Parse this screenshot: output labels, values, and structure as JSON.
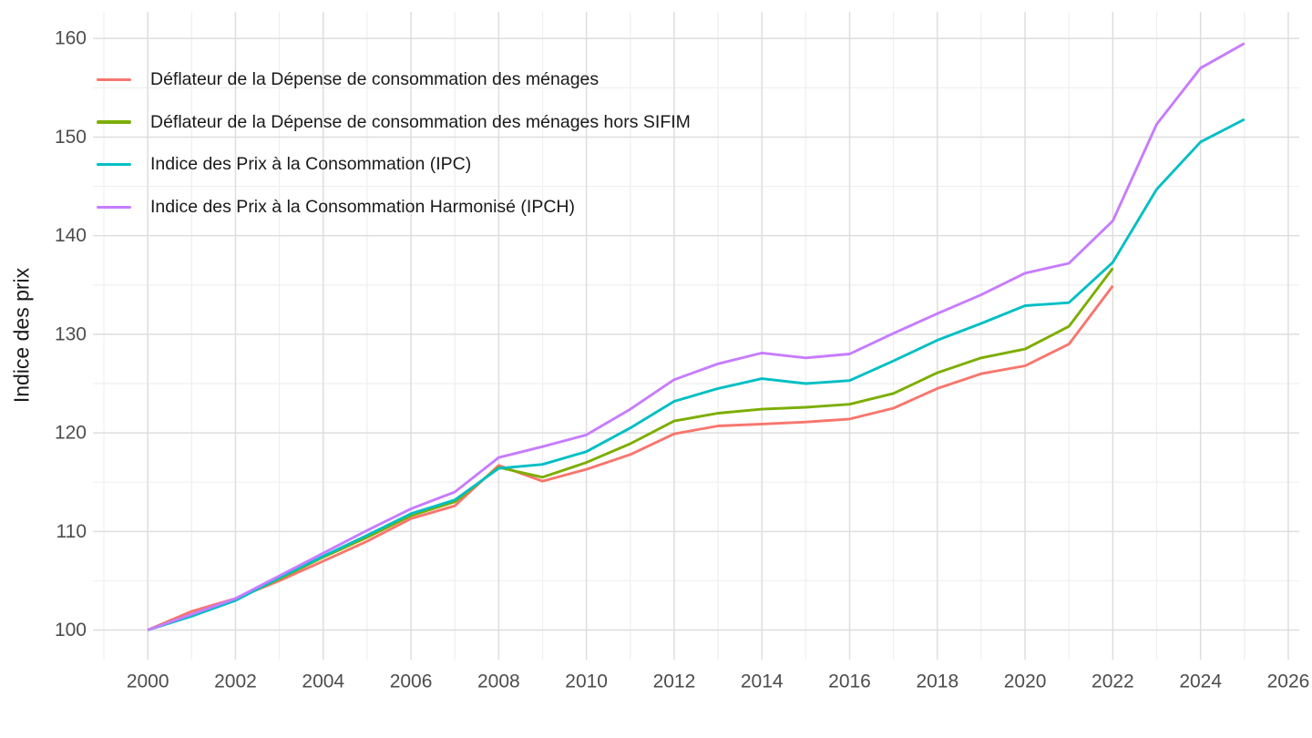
{
  "figure": {
    "background": "#ffffff",
    "axis_text_color": "#4d4d4d",
    "axis_title_color": "#1a1a1a",
    "grid_major_color": "#dedede",
    "grid_minor_color": "#efefef"
  },
  "chart_data": {
    "type": "line",
    "title": "",
    "xlabel": "",
    "ylabel": "Indice des prix",
    "grid": true,
    "legend_position": "inside-top-left",
    "x_range": [
      1998.75,
      2026.25
    ],
    "y_range": [
      97.0,
      162.7
    ],
    "x_ticks_major": [
      2000,
      2002,
      2004,
      2006,
      2008,
      2010,
      2012,
      2014,
      2016,
      2018,
      2020,
      2022,
      2024,
      2026
    ],
    "x_ticks_minor": [
      1999,
      2001,
      2003,
      2005,
      2007,
      2009,
      2011,
      2013,
      2015,
      2017,
      2019,
      2021,
      2023,
      2025
    ],
    "y_ticks_major": [
      100,
      110,
      120,
      130,
      140,
      150,
      160
    ],
    "y_ticks_minor": [
      105,
      115,
      125,
      135,
      145,
      155
    ],
    "series": [
      {
        "name": "Déflateur de la Dépense de consommation des ménages",
        "color": "#F8766D",
        "x": [
          2000,
          2001,
          2002,
          2003,
          2004,
          2005,
          2006,
          2007,
          2008,
          2009,
          2010,
          2011,
          2012,
          2013,
          2014,
          2015,
          2016,
          2017,
          2018,
          2019,
          2020,
          2021,
          2022
        ],
        "values": [
          100,
          101.9,
          103.2,
          105.0,
          107.0,
          109.0,
          111.3,
          112.6,
          116.7,
          115.1,
          116.3,
          117.8,
          119.9,
          120.7,
          120.9,
          121.1,
          121.4,
          122.5,
          124.5,
          126.0,
          126.8,
          129.0,
          134.9
        ]
      },
      {
        "name": "Déflateur de la Dépense de consommation des ménages hors SIFIM",
        "color": "#7CAE00",
        "x": [
          2000,
          2001,
          2002,
          2003,
          2004,
          2005,
          2006,
          2007,
          2008,
          2009,
          2010,
          2011,
          2012,
          2013,
          2014,
          2015,
          2016,
          2017,
          2018,
          2019,
          2020,
          2021,
          2022
        ],
        "values": [
          100,
          101.6,
          103.1,
          105.2,
          107.4,
          109.4,
          111.6,
          113.0,
          116.5,
          115.5,
          117.0,
          118.9,
          121.2,
          122.0,
          122.4,
          122.6,
          122.9,
          124.0,
          126.1,
          127.6,
          128.5,
          130.8,
          136.7
        ]
      },
      {
        "name": "Indice des Prix à la Consommation (IPC)",
        "color": "#00BFC4",
        "x": [
          2000,
          2001,
          2002,
          2003,
          2004,
          2005,
          2006,
          2007,
          2008,
          2009,
          2010,
          2011,
          2012,
          2013,
          2014,
          2015,
          2016,
          2017,
          2018,
          2019,
          2020,
          2021,
          2022,
          2023,
          2024,
          2025
        ],
        "values": [
          100,
          101.4,
          103.0,
          105.3,
          107.5,
          109.6,
          111.8,
          113.2,
          116.4,
          116.8,
          118.1,
          120.5,
          123.2,
          124.5,
          125.5,
          125.0,
          125.3,
          127.3,
          129.4,
          131.1,
          132.9,
          133.2,
          137.3,
          144.7,
          149.5,
          151.8
        ]
      },
      {
        "name": "Indice des Prix à la Consommation Harmonisé (IPCH)",
        "color": "#C77CFF",
        "x": [
          2000,
          2001,
          2002,
          2003,
          2004,
          2005,
          2006,
          2007,
          2008,
          2009,
          2010,
          2011,
          2012,
          2013,
          2014,
          2015,
          2016,
          2017,
          2018,
          2019,
          2020,
          2021,
          2022,
          2023,
          2024,
          2025
        ],
        "values": [
          100,
          101.6,
          103.2,
          105.5,
          107.8,
          110.1,
          112.3,
          114.0,
          117.5,
          118.6,
          119.8,
          122.4,
          125.4,
          127.0,
          128.1,
          127.6,
          128.0,
          130.1,
          132.1,
          134.0,
          136.2,
          137.2,
          141.5,
          151.3,
          157.0,
          159.5
        ]
      }
    ]
  }
}
